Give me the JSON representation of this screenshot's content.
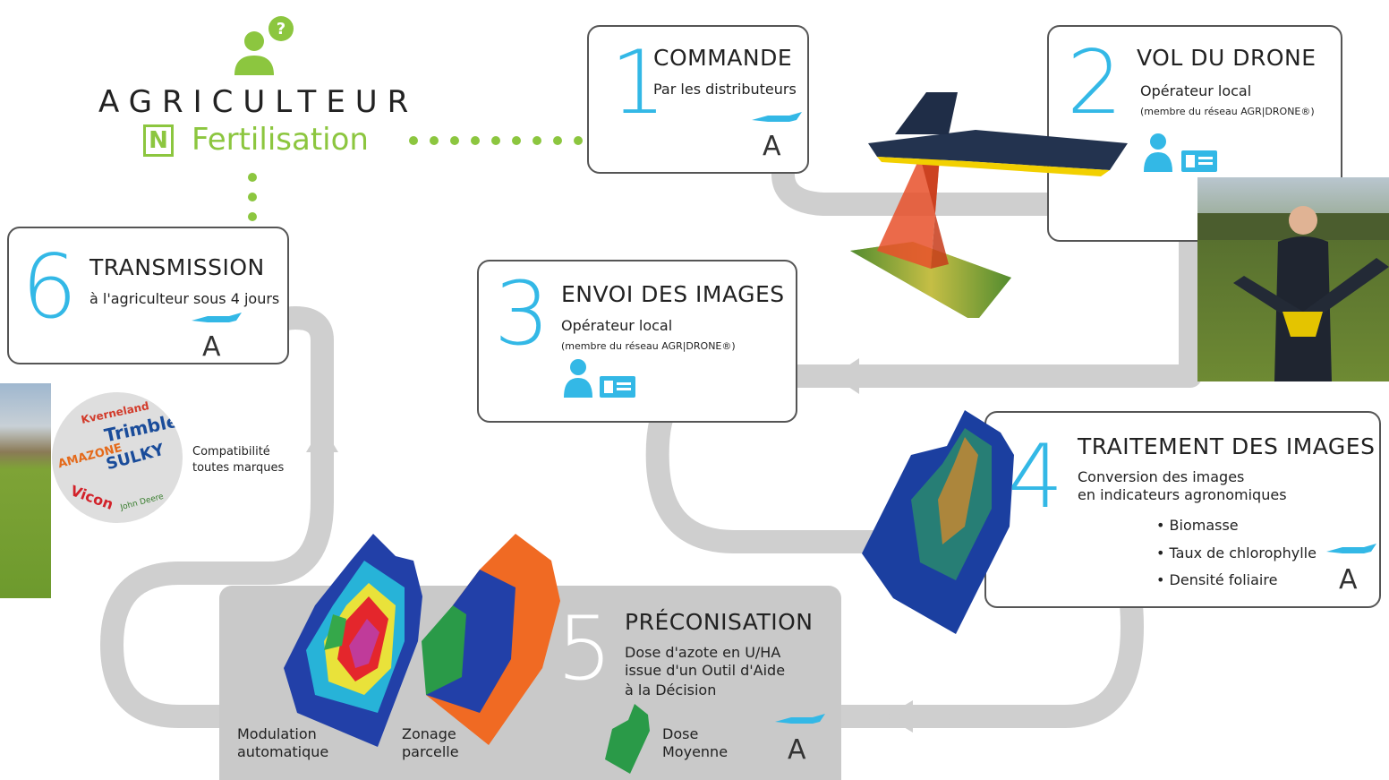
{
  "header": {
    "agriculteur": "AGRICULTEUR",
    "fert_badge": "N",
    "fertilisation": "Fertilisation"
  },
  "steps": [
    {
      "num": "1",
      "title": "COMMANDE",
      "sub1": "Par les distributeurs"
    },
    {
      "num": "2",
      "title": "VOL DU DRONE",
      "sub1": "Opérateur local",
      "sub2": "(membre du réseau AGR|DRONE®)"
    },
    {
      "num": "3",
      "title": "ENVOI DES IMAGES",
      "sub1": "Opérateur local",
      "sub2": "(membre du réseau AGR|DRONE®)"
    },
    {
      "num": "4",
      "title": "TRAITEMENT DES IMAGES",
      "sub1": "Conversion des images",
      "sub2": "en indicateurs agronomiques",
      "bullets": [
        "• Biomasse",
        "• Taux de chlorophylle",
        "• Densité foliaire"
      ]
    },
    {
      "num": "5",
      "title": "PRÉCONISATION",
      "sub1": "Dose d'azote en U/HA",
      "sub2": "issue d'un Outil d'Aide",
      "sub3": "à la Décision"
    },
    {
      "num": "6",
      "title": "TRANSMISSION",
      "sub1": "à l'agriculteur sous 4 jours"
    }
  ],
  "map_labels": {
    "modulation_1": "Modulation",
    "modulation_2": "automatique",
    "zonage_1": "Zonage",
    "zonage_2": "parcelle",
    "dose_1": "Dose",
    "dose_2": "Moyenne"
  },
  "compat": {
    "line1": "Compatibilité",
    "line2": "toutes marques",
    "brands": [
      "Kverneland",
      "Trimble",
      "AMAZONE",
      "SULKY",
      "Vicon",
      "John Deere"
    ]
  },
  "logo_letter": "A",
  "colors": {
    "accent_blue": "#33b8e6",
    "green": "#8cc63f",
    "road": "#cfcfcf",
    "border": "#555555"
  },
  "icons": [
    "question-person-icon",
    "drone-icon",
    "person-icon",
    "id-card-icon",
    "arrow-icon"
  ]
}
